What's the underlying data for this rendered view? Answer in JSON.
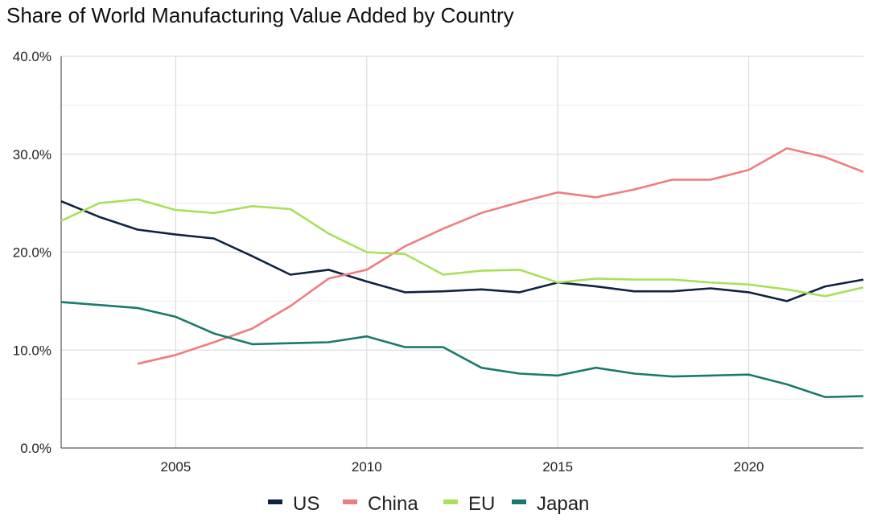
{
  "chart_data": {
    "type": "line",
    "title": "Share of World Manufacturing Value Added by Country",
    "xlabel": "",
    "ylabel": "",
    "xlim": [
      2002,
      2023
    ],
    "ylim": [
      0,
      40
    ],
    "x_ticks": [
      2005,
      2010,
      2015,
      2020
    ],
    "x_tick_labels": [
      "2005",
      "2010",
      "2015",
      "2020"
    ],
    "y_ticks": [
      0,
      10,
      20,
      30,
      40
    ],
    "y_tick_labels": [
      "0.0%",
      "10.0%",
      "20.0%",
      "30.0%",
      "40.0%"
    ],
    "grid": true,
    "legend_position": "bottom",
    "x": [
      2002,
      2003,
      2004,
      2005,
      2006,
      2007,
      2008,
      2009,
      2010,
      2011,
      2012,
      2013,
      2014,
      2015,
      2016,
      2017,
      2018,
      2019,
      2020,
      2021,
      2022,
      2023
    ],
    "series": [
      {
        "name": "US",
        "color": "#0f2340",
        "values": [
          25.2,
          23.6,
          22.3,
          21.8,
          21.4,
          19.6,
          17.7,
          18.2,
          17.0,
          15.9,
          16.0,
          16.2,
          15.9,
          16.9,
          16.5,
          16.0,
          16.0,
          16.3,
          15.9,
          15.0,
          16.5,
          17.2
        ]
      },
      {
        "name": "China",
        "color": "#f07c80",
        "values": [
          null,
          null,
          8.6,
          9.5,
          10.8,
          12.2,
          14.5,
          17.3,
          18.2,
          20.6,
          22.4,
          24.0,
          25.1,
          26.1,
          25.6,
          26.4,
          27.4,
          27.4,
          28.4,
          30.6,
          29.7,
          28.2
        ]
      },
      {
        "name": "EU",
        "color": "#a9e05a",
        "values": [
          23.2,
          25.0,
          25.4,
          24.3,
          24.0,
          24.7,
          24.4,
          21.9,
          20.0,
          19.8,
          17.7,
          18.1,
          18.2,
          16.9,
          17.3,
          17.2,
          17.2,
          16.9,
          16.7,
          16.2,
          15.5,
          16.4
        ]
      },
      {
        "name": "Japan",
        "color": "#1a7a6a",
        "values": [
          14.9,
          14.6,
          14.3,
          13.4,
          11.7,
          10.6,
          10.7,
          10.8,
          11.4,
          10.3,
          10.3,
          8.2,
          7.6,
          7.4,
          8.2,
          7.6,
          7.3,
          7.4,
          7.5,
          6.5,
          5.2,
          5.3
        ]
      }
    ]
  }
}
